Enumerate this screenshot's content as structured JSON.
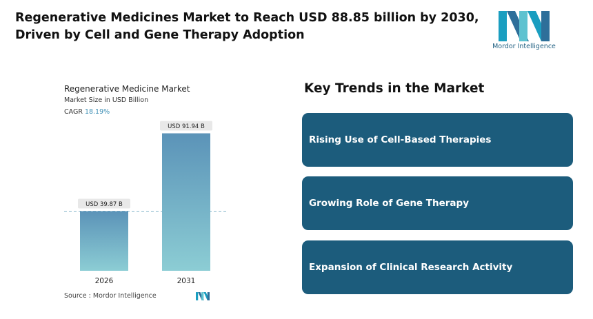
{
  "headline": {
    "line1": "Regenerative Medicines Market to Reach USD 88.85 billion by 2030,",
    "line2": "Driven by Cell and Gene Therapy Adoption"
  },
  "logo": {
    "text": "Mordor Intelligence",
    "icon": "mordor-intelligence-logo"
  },
  "chart_panel": {
    "title": "Regenerative Medicine Market",
    "subtitle": "Market Size in USD Billion",
    "cagr_label": "CAGR",
    "cagr_value": "18.19%",
    "source_label": "Source :",
    "source_value": "Mordor Intelligence"
  },
  "chart_data": {
    "type": "bar",
    "title": "Regenerative Medicine Market",
    "ylabel": "Market Size in USD Billion",
    "categories": [
      "2026",
      "2031"
    ],
    "values": [
      39.87,
      91.94
    ],
    "data_labels": [
      "USD 39.87 B",
      "USD 91.94 B"
    ],
    "ylim": [
      0,
      100
    ],
    "grid": false,
    "reference_line": 39.87,
    "colors": {
      "bar_top": "#5b93b8",
      "bar_bottom": "#8ccdd4",
      "label_bg": "#e8e8e8"
    }
  },
  "trends": {
    "title": "Key Trends in the Market",
    "items": [
      {
        "label": "Rising Use of Cell-Based Therapies"
      },
      {
        "label": "Growing Role of Gene Therapy"
      },
      {
        "label": "Expansion of Clinical Research Activity"
      }
    ],
    "card_color": "#1c5c7c"
  }
}
